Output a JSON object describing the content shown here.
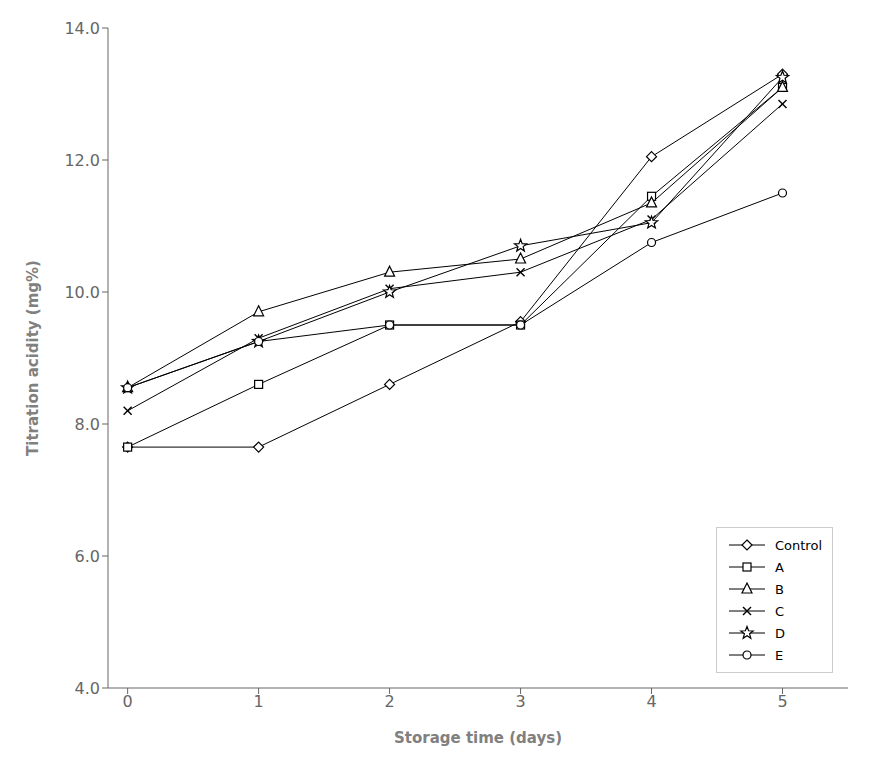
{
  "chart_data": {
    "type": "line",
    "xlabel": "Storage time (days)",
    "ylabel": "Titration acidity (mg%)",
    "x": [
      0,
      1,
      2,
      3,
      4,
      5
    ],
    "series": [
      {
        "name": "Control",
        "values": [
          7.65,
          7.65,
          8.6,
          9.55,
          12.05,
          13.3
        ],
        "marker": "diamond"
      },
      {
        "name": "A",
        "values": [
          7.65,
          8.6,
          9.5,
          9.5,
          11.45,
          13.1
        ],
        "marker": "square"
      },
      {
        "name": "B",
        "values": [
          8.55,
          9.7,
          10.3,
          10.5,
          11.35,
          13.1
        ],
        "marker": "triangle"
      },
      {
        "name": "C",
        "values": [
          8.2,
          9.3,
          10.05,
          10.3,
          11.1,
          12.85
        ],
        "marker": "x"
      },
      {
        "name": "D",
        "values": [
          8.55,
          9.25,
          10.0,
          10.7,
          11.05,
          13.25
        ],
        "marker": "star"
      },
      {
        "name": "E",
        "values": [
          8.55,
          9.25,
          9.5,
          9.5,
          10.75,
          11.5
        ],
        "marker": "circle"
      }
    ],
    "color": "#000000",
    "xlim": [
      -0.15,
      5.5
    ],
    "ylim": [
      4.0,
      14.0
    ],
    "xticks": [
      0,
      1,
      2,
      3,
      4,
      5
    ],
    "yticks": [
      {
        "value": 4.0,
        "label": "4.0"
      },
      {
        "value": 6.0,
        "label": "6.0"
      },
      {
        "value": 8.0,
        "label": "8.0"
      },
      {
        "value": 10.0,
        "label": "10.0"
      },
      {
        "value": 12.0,
        "label": "12.0"
      },
      {
        "value": 14.0,
        "label": "14.0"
      }
    ],
    "grid": false,
    "legend": "lower right"
  }
}
